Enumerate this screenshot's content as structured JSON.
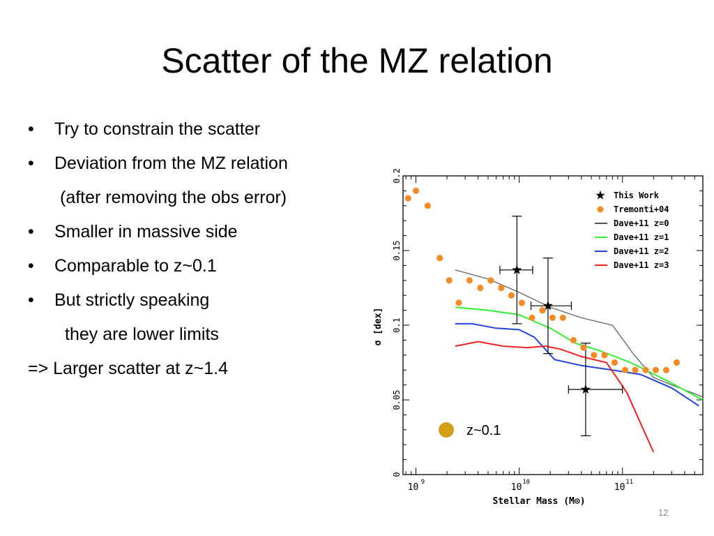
{
  "slide": {
    "title": "Scatter of the MZ relation",
    "bullets": [
      {
        "text": "Try to constrain the scatter",
        "kind": "bullet"
      },
      {
        "text": "Deviation from the MZ relation",
        "kind": "bullet"
      },
      {
        "text": "(after removing  the obs error)",
        "kind": "cont1"
      },
      {
        "text": "Smaller  in massive side",
        "kind": "bullet"
      },
      {
        "text": "Comparable to z~0.1",
        "kind": "bullet"
      },
      {
        "text": "But strictly speaking",
        "kind": "bullet"
      },
      {
        "text": "they are lower limits",
        "kind": "cont2"
      },
      {
        "text": "=>  Larger scatter at z~1.4",
        "kind": "plain"
      }
    ],
    "page_number": "12"
  },
  "chart_data": {
    "type": "scatter",
    "xlabel": "Stellar Mass (M⊙)",
    "ylabel": "σ [dex]",
    "x_scale": "log",
    "xlim": [
      750000000.0,
      600000000000.0
    ],
    "ylim": [
      0,
      0.2
    ],
    "x_tick_labels": [
      "10",
      "10",
      "10"
    ],
    "x_tick_exponents": [
      "9",
      "10",
      "11"
    ],
    "x_ticks": [
      1000000000.0,
      10000000000.0,
      100000000000.0
    ],
    "y_ticks": [
      0,
      0.05,
      0.1,
      0.15,
      0.2
    ],
    "y_tick_labels": [
      "0",
      "0.05",
      "0.1",
      "0.15",
      "0.2"
    ],
    "grid": false,
    "legend_position": "top-right",
    "annotation": {
      "text": "z~0.1",
      "color": "#d4a017"
    },
    "series": [
      {
        "name": "This Work",
        "kind": "points-errorbars",
        "marker": "star",
        "color": "#000000",
        "points": [
          {
            "x": 9500000000.0,
            "y": 0.137,
            "xerr": [
              6500000000.0,
              13500000000.0
            ],
            "yerr": [
              0.101,
              0.173
            ]
          },
          {
            "x": 19000000000.0,
            "y": 0.113,
            "xerr": [
              13000000000.0,
              32000000000.0
            ],
            "yerr": [
              0.081,
              0.145
            ]
          },
          {
            "x": 44000000000.0,
            "y": 0.057,
            "xerr": [
              30000000000.0,
              100000000000.0
            ],
            "yerr": [
              0.026,
              0.088
            ]
          }
        ]
      },
      {
        "name": "Tremonti+04",
        "kind": "points",
        "marker": "circle",
        "color": "#f28c28",
        "points": [
          {
            "x": 840000000.0,
            "y": 0.185
          },
          {
            "x": 1000000000.0,
            "y": 0.19
          },
          {
            "x": 1300000000.0,
            "y": 0.18
          },
          {
            "x": 1700000000.0,
            "y": 0.145
          },
          {
            "x": 2100000000.0,
            "y": 0.13
          },
          {
            "x": 2600000000.0,
            "y": 0.115
          },
          {
            "x": 3300000000.0,
            "y": 0.13
          },
          {
            "x": 4200000000.0,
            "y": 0.125
          },
          {
            "x": 5300000000.0,
            "y": 0.13
          },
          {
            "x": 6700000000.0,
            "y": 0.125
          },
          {
            "x": 8400000000.0,
            "y": 0.12
          },
          {
            "x": 10600000000.0,
            "y": 0.115
          },
          {
            "x": 13300000000.0,
            "y": 0.105
          },
          {
            "x": 16800000000.0,
            "y": 0.11
          },
          {
            "x": 21000000000.0,
            "y": 0.105
          },
          {
            "x": 26500000000.0,
            "y": 0.105
          },
          {
            "x": 33500000000.0,
            "y": 0.09
          },
          {
            "x": 42000000000.0,
            "y": 0.085
          },
          {
            "x": 53000000000.0,
            "y": 0.08
          },
          {
            "x": 67000000000.0,
            "y": 0.08
          },
          {
            "x": 84000000000.0,
            "y": 0.075
          },
          {
            "x": 106000000000.0,
            "y": 0.07
          },
          {
            "x": 133000000000.0,
            "y": 0.07
          },
          {
            "x": 168000000000.0,
            "y": 0.07
          },
          {
            "x": 210000000000.0,
            "y": 0.07
          },
          {
            "x": 265000000000.0,
            "y": 0.07
          },
          {
            "x": 335000000000.0,
            "y": 0.075
          }
        ]
      },
      {
        "name": "Dave+11 z=0",
        "kind": "line",
        "color": "#555555",
        "points": [
          {
            "x": 2400000000.0,
            "y": 0.137
          },
          {
            "x": 5000000000.0,
            "y": 0.131
          },
          {
            "x": 10000000000.0,
            "y": 0.122
          },
          {
            "x": 20000000000.0,
            "y": 0.112
          },
          {
            "x": 40000000000.0,
            "y": 0.105
          },
          {
            "x": 80000000000.0,
            "y": 0.1
          },
          {
            "x": 130000000000.0,
            "y": 0.08
          },
          {
            "x": 200000000000.0,
            "y": 0.065
          },
          {
            "x": 300000000000.0,
            "y": 0.06
          },
          {
            "x": 600000000000.0,
            "y": 0.052
          }
        ]
      },
      {
        "name": "Dave+11 z=1",
        "kind": "line",
        "color": "#33ee33",
        "points": [
          {
            "x": 2400000000.0,
            "y": 0.112
          },
          {
            "x": 5000000000.0,
            "y": 0.11
          },
          {
            "x": 10000000000.0,
            "y": 0.107
          },
          {
            "x": 20000000000.0,
            "y": 0.098
          },
          {
            "x": 35000000000.0,
            "y": 0.088
          },
          {
            "x": 60000000000.0,
            "y": 0.083
          },
          {
            "x": 120000000000.0,
            "y": 0.075
          },
          {
            "x": 250000000000.0,
            "y": 0.064
          },
          {
            "x": 600000000000.0,
            "y": 0.05
          }
        ]
      },
      {
        "name": "Dave+11 z=2",
        "kind": "line",
        "color": "#2244dd",
        "points": [
          {
            "x": 2400000000.0,
            "y": 0.101
          },
          {
            "x": 3500000000.0,
            "y": 0.101
          },
          {
            "x": 6000000000.0,
            "y": 0.098
          },
          {
            "x": 10000000000.0,
            "y": 0.097
          },
          {
            "x": 14000000000.0,
            "y": 0.092
          },
          {
            "x": 22000000000.0,
            "y": 0.077
          },
          {
            "x": 40000000000.0,
            "y": 0.073
          },
          {
            "x": 80000000000.0,
            "y": 0.07
          },
          {
            "x": 150000000000.0,
            "y": 0.067
          },
          {
            "x": 300000000000.0,
            "y": 0.058
          },
          {
            "x": 550000000000.0,
            "y": 0.046
          }
        ]
      },
      {
        "name": "Dave+11 z=3",
        "kind": "line",
        "color": "#ee2222",
        "points": [
          {
            "x": 2400000000.0,
            "y": 0.086
          },
          {
            "x": 4000000000.0,
            "y": 0.089
          },
          {
            "x": 7000000000.0,
            "y": 0.086
          },
          {
            "x": 12000000000.0,
            "y": 0.085
          },
          {
            "x": 18000000000.0,
            "y": 0.086
          },
          {
            "x": 25000000000.0,
            "y": 0.084
          },
          {
            "x": 40000000000.0,
            "y": 0.079
          },
          {
            "x": 70000000000.0,
            "y": 0.075
          },
          {
            "x": 110000000000.0,
            "y": 0.055
          },
          {
            "x": 200000000000.0,
            "y": 0.015
          }
        ]
      }
    ]
  }
}
